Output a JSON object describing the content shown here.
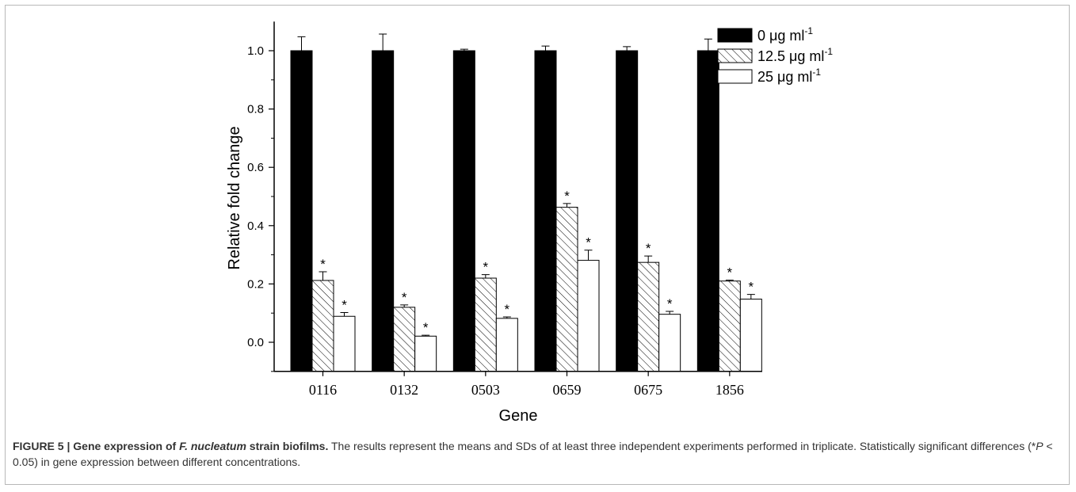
{
  "chart_data": {
    "type": "bar",
    "xlabel": "Gene",
    "ylabel": "Relative fold change",
    "ylim": [
      -0.1,
      1.1
    ],
    "yticks": [
      "0.0",
      "0.2",
      "0.4",
      "0.6",
      "0.8",
      "1.0"
    ],
    "categories": [
      "0116",
      "0132",
      "0503",
      "0659",
      "0675",
      "1856"
    ],
    "legend_position": "top-right",
    "series": [
      {
        "name_parts": [
          "0 ",
          "μ",
          "g ml",
          "-1"
        ],
        "fill": "solid-black",
        "values": [
          1.0,
          1.0,
          1.0,
          1.0,
          1.0,
          1.0
        ],
        "errors": [
          0.048,
          0.057,
          0.005,
          0.016,
          0.014,
          0.04
        ],
        "significant": [
          false,
          false,
          false,
          false,
          false,
          false
        ]
      },
      {
        "name_parts": [
          "12.5 ",
          "μ",
          "g ml",
          "-1"
        ],
        "fill": "diagonal-hatch",
        "values": [
          0.212,
          0.12,
          0.22,
          0.463,
          0.274,
          0.21
        ],
        "errors": [
          0.03,
          0.008,
          0.012,
          0.013,
          0.022,
          0.003
        ],
        "significant": [
          true,
          true,
          true,
          true,
          true,
          true
        ]
      },
      {
        "name_parts": [
          "25 ",
          "μ",
          "g ml",
          "-1"
        ],
        "fill": "white",
        "values": [
          0.089,
          0.021,
          0.082,
          0.281,
          0.096,
          0.148
        ],
        "errors": [
          0.013,
          0.003,
          0.005,
          0.035,
          0.01,
          0.016
        ],
        "significant": [
          true,
          true,
          true,
          true,
          true,
          true
        ]
      }
    ],
    "significance_marker": "*",
    "colors": {
      "bar_black": "#000000",
      "bar_white": "#ffffff",
      "outline": "#000000"
    }
  },
  "caption": {
    "head_1": "FIGURE 5 | Gene expression of ",
    "head_italic": "F. nucleatum",
    "head_2": " strain biofilms.",
    "body_1": " The results represent the means and SDs of at least three independent experiments performed in triplicate. Statistically significant differences (*",
    "body_italic": "P",
    "body_2": " < 0.05) in gene expression between different concentrations."
  }
}
